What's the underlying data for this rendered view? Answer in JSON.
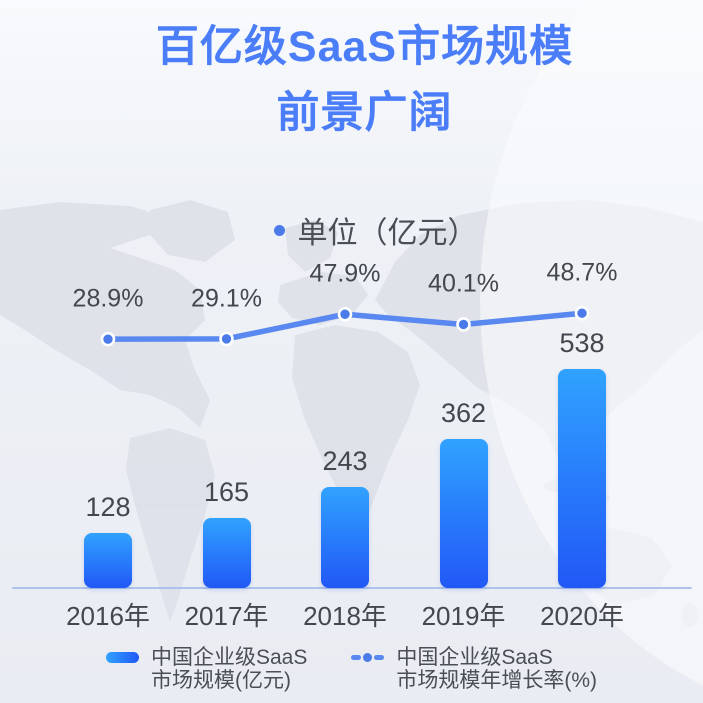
{
  "title": {
    "line1": "百亿级SaaS市场规模",
    "line2": "前景广阔"
  },
  "unit_label": "单位（亿元）",
  "chart_data": {
    "type": "bar",
    "categories": [
      "2016年",
      "2017年",
      "2018年",
      "2019年",
      "2020年"
    ],
    "series": [
      {
        "name": "中国企业级SaaS市场规模(亿元)",
        "type": "bar",
        "values": [
          128,
          165,
          243,
          362,
          538
        ]
      },
      {
        "name": "中国企业级SaaS市场规模年增长率(%)",
        "type": "line",
        "values": [
          28.9,
          29.1,
          47.9,
          40.1,
          48.7
        ]
      }
    ],
    "unit": "亿元",
    "growth_unit": "%",
    "grid": false,
    "legend_position": "bottom",
    "ylim_bar": [
      0,
      600
    ],
    "ylim_line_pct": [
      20,
      55
    ]
  },
  "legend": {
    "items": [
      {
        "line1": "中国企业级SaaS",
        "line2": "市场规模(亿元)"
      },
      {
        "line1": "中国企业级SaaS",
        "line2": "市场规模年增长率(%)"
      }
    ]
  },
  "colors": {
    "title": "#4A7DF7",
    "bar_top": "#30A2FF",
    "bar_bottom": "#2158F6",
    "line": "#5988F0",
    "dot_fill": "#4A7BE8",
    "dot_ring": "#FFFFFF",
    "axis": "#A5BEEA",
    "label_text": "#43474E",
    "subtitle_text": "#4A4E55",
    "legend_text": "#4A4E55",
    "map": "#DCDFE7"
  }
}
